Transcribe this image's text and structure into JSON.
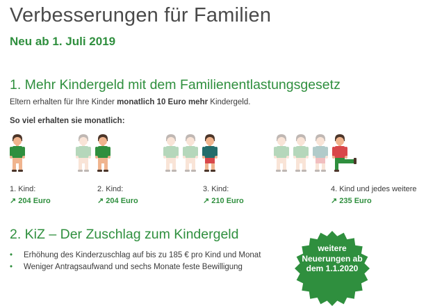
{
  "header": {
    "title": "Verbesserungen für Familien",
    "subtitle": "Neu ab 1. Juli 2019"
  },
  "section1": {
    "heading": "1. Mehr Kindergeld mit dem Familienentlastungsgesetz",
    "intro_before": "Eltern erhalten für Ihre Kinder ",
    "intro_bold": "monatlich 10 Euro mehr",
    "intro_after": " Kindergeld.",
    "monthly_heading": "So viel erhalten sie monatlich:",
    "groups": [
      {
        "label": "1. Kind:",
        "arrow": "↗",
        "amount": "204 Euro"
      },
      {
        "label": "2. Kind:",
        "arrow": "↗",
        "amount": "204 Euro"
      },
      {
        "label": "3. Kind:",
        "arrow": "↗",
        "amount": "210 Euro"
      },
      {
        "label": "4. Kind und jedes weitere",
        "arrow": "↗",
        "amount": "235 Euro"
      }
    ]
  },
  "section2": {
    "heading": "2. KiZ – Der Zuschlag zum Kindergeld",
    "bullets": [
      "Erhöhung des Kinderzuschlag auf bis zu 185 € pro Kind und Monat",
      "Weniger Antragsaufwand und sechs Monate feste Bewilligung"
    ]
  },
  "badge": {
    "line1": "weitere",
    "line2": "Neuerungen ab",
    "line3": "dem 1.1.2020"
  },
  "colors": {
    "accent_green": "#2f8f3e",
    "text": "#3a3a3a",
    "child_red": "#d8474a",
    "child_green": "#2f8f3e",
    "child_teal": "#236c6b",
    "child_skin": "#f0b48e",
    "child_hair": "#4b3529",
    "faded_opacity": "0.35"
  }
}
